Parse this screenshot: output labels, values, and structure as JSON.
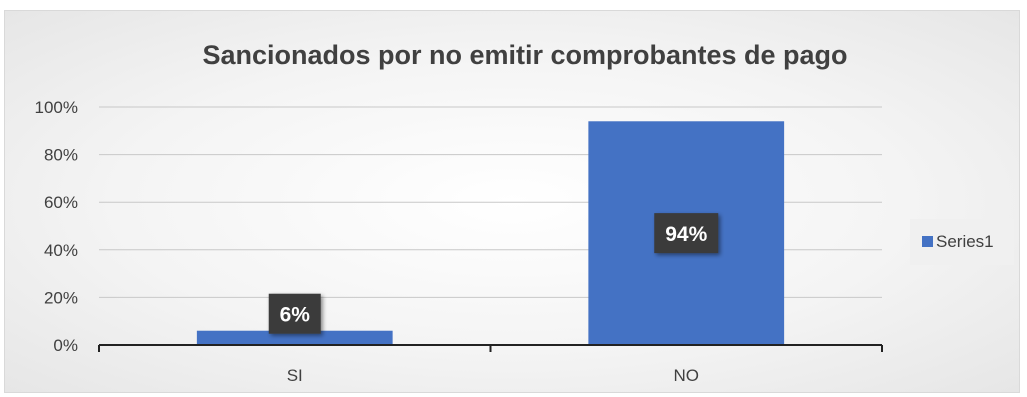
{
  "chart_data": {
    "type": "bar",
    "title": "Sancionados por no emitir comprobantes de pago",
    "categories": [
      "SI",
      "NO"
    ],
    "series": [
      {
        "name": "Series1",
        "values": [
          6,
          94
        ],
        "color": "#4472C4"
      }
    ],
    "data_labels": [
      "6%",
      "94%"
    ],
    "y_ticks": [
      "0%",
      "20%",
      "40%",
      "60%",
      "80%",
      "100%"
    ],
    "ylim": [
      0,
      100
    ],
    "grid": true,
    "legend_position": "right",
    "xlabel": "",
    "ylabel": ""
  }
}
